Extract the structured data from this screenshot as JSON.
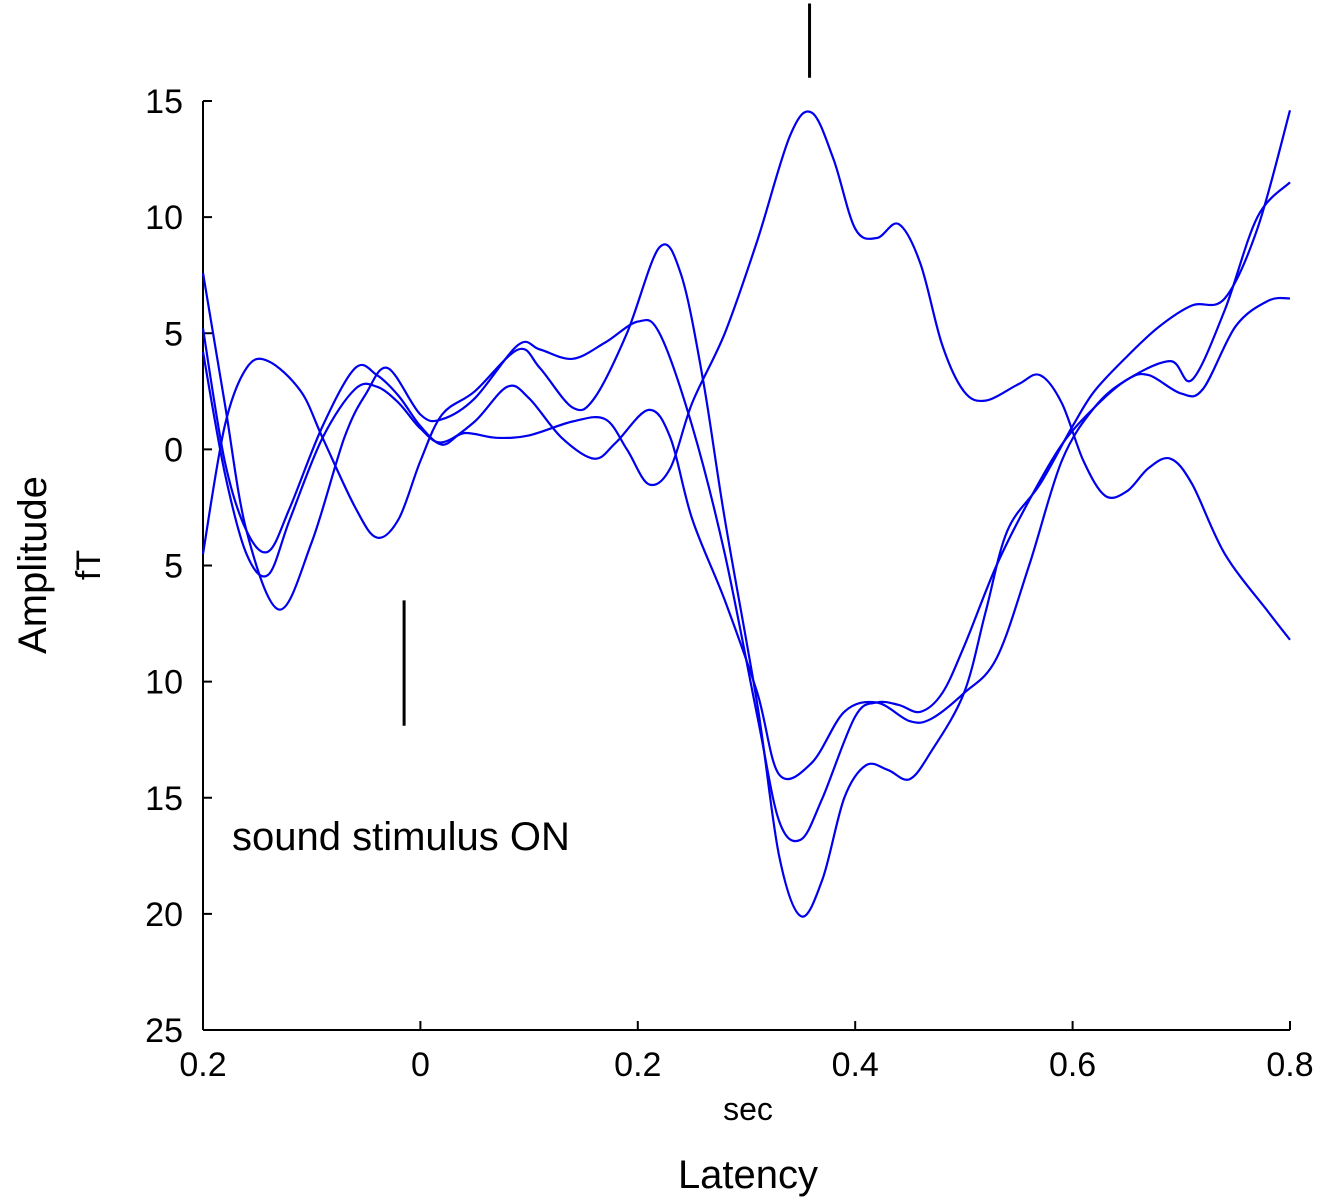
{
  "chart_data": {
    "type": "line",
    "xlabel": "Latency",
    "xunit": "sec",
    "ylabel": "Amplitude",
    "yunit": "fT",
    "xlim": [
      -0.2,
      0.8
    ],
    "ylim": [
      -25,
      15
    ],
    "xticks": [
      -0.2,
      0,
      0.2,
      0.4,
      0.6,
      0.8
    ],
    "xtick_labels": [
      "0.2",
      "0",
      "0.2",
      "0.4",
      "0.6",
      "0.8"
    ],
    "yticks": [
      15,
      10,
      5,
      0,
      -5,
      -10,
      -15,
      -20,
      -25
    ],
    "ytick_labels": [
      "15",
      "10",
      "5",
      "0",
      "5",
      "10",
      "15",
      "20",
      "25"
    ],
    "grid": false,
    "line_color": "#0000ee",
    "annotation": "sound stimulus ON",
    "markers": [
      {
        "x": -0.015,
        "y1": -6.5,
        "y2": -11.9
      },
      {
        "x": 0.358,
        "y1": 16.0,
        "y2": 19.2
      }
    ],
    "series": [
      {
        "points": [
          [
            -0.2,
            7.6
          ],
          [
            -0.18,
            2.0
          ],
          [
            -0.16,
            -3.5
          ],
          [
            -0.13,
            -6.9
          ],
          [
            -0.1,
            -4.0
          ],
          [
            -0.07,
            0.5
          ],
          [
            -0.05,
            2.4
          ],
          [
            -0.03,
            3.5
          ],
          [
            0.0,
            1.5
          ],
          [
            0.02,
            1.3
          ],
          [
            0.05,
            2.2
          ],
          [
            0.09,
            4.5
          ],
          [
            0.11,
            4.3
          ],
          [
            0.14,
            3.9
          ],
          [
            0.17,
            4.6
          ],
          [
            0.2,
            5.5
          ],
          [
            0.22,
            5.0
          ],
          [
            0.25,
            1.0
          ],
          [
            0.28,
            -4.5
          ],
          [
            0.31,
            -11.5
          ],
          [
            0.33,
            -16.0
          ],
          [
            0.35,
            -16.8
          ],
          [
            0.37,
            -15.0
          ],
          [
            0.4,
            -11.5
          ],
          [
            0.42,
            -10.9
          ],
          [
            0.44,
            -11.0
          ],
          [
            0.46,
            -11.3
          ],
          [
            0.48,
            -10.5
          ],
          [
            0.5,
            -8.5
          ],
          [
            0.53,
            -5.0
          ],
          [
            0.56,
            -2.2
          ],
          [
            0.59,
            0.2
          ],
          [
            0.62,
            1.8
          ],
          [
            0.65,
            3.0
          ],
          [
            0.67,
            3.2
          ],
          [
            0.7,
            2.4
          ],
          [
            0.72,
            2.6
          ],
          [
            0.75,
            5.3
          ],
          [
            0.78,
            6.4
          ],
          [
            0.8,
            6.5
          ]
        ]
      },
      {
        "points": [
          [
            -0.2,
            4.2
          ],
          [
            -0.18,
            -1.0
          ],
          [
            -0.16,
            -4.5
          ],
          [
            -0.14,
            -5.4
          ],
          [
            -0.12,
            -3.0
          ],
          [
            -0.09,
            0.5
          ],
          [
            -0.06,
            2.6
          ],
          [
            -0.04,
            2.7
          ],
          [
            -0.02,
            2.0
          ],
          [
            0.0,
            0.9
          ],
          [
            0.02,
            0.3
          ],
          [
            0.05,
            1.2
          ],
          [
            0.08,
            2.7
          ],
          [
            0.1,
            2.2
          ],
          [
            0.13,
            0.5
          ],
          [
            0.16,
            -0.4
          ],
          [
            0.18,
            0.3
          ],
          [
            0.21,
            1.7
          ],
          [
            0.23,
            0.5
          ],
          [
            0.25,
            -3.0
          ],
          [
            0.28,
            -6.5
          ],
          [
            0.31,
            -10.5
          ],
          [
            0.33,
            -14.0
          ],
          [
            0.36,
            -13.5
          ],
          [
            0.39,
            -11.3
          ],
          [
            0.42,
            -10.9
          ],
          [
            0.45,
            -11.7
          ],
          [
            0.47,
            -11.6
          ],
          [
            0.5,
            -10.5
          ],
          [
            0.53,
            -9.0
          ],
          [
            0.56,
            -5.0
          ],
          [
            0.59,
            -0.5
          ],
          [
            0.62,
            1.8
          ],
          [
            0.65,
            3.0
          ],
          [
            0.69,
            3.8
          ],
          [
            0.71,
            3.0
          ],
          [
            0.74,
            6.0
          ],
          [
            0.77,
            10.0
          ],
          [
            0.8,
            11.5
          ]
        ]
      },
      {
        "points": [
          [
            -0.2,
            5.2
          ],
          [
            -0.18,
            -0.5
          ],
          [
            -0.16,
            -3.5
          ],
          [
            -0.14,
            -4.4
          ],
          [
            -0.12,
            -2.5
          ],
          [
            -0.09,
            1.0
          ],
          [
            -0.06,
            3.5
          ],
          [
            -0.04,
            3.2
          ],
          [
            -0.02,
            2.3
          ],
          [
            0.0,
            1.0
          ],
          [
            0.02,
            0.2
          ],
          [
            0.04,
            0.7
          ],
          [
            0.07,
            0.5
          ],
          [
            0.1,
            0.6
          ],
          [
            0.14,
            1.2
          ],
          [
            0.17,
            1.3
          ],
          [
            0.19,
            0.0
          ],
          [
            0.21,
            -1.5
          ],
          [
            0.23,
            -0.8
          ],
          [
            0.25,
            2.0
          ],
          [
            0.28,
            5.0
          ],
          [
            0.31,
            9.0
          ],
          [
            0.34,
            13.5
          ],
          [
            0.36,
            14.5
          ],
          [
            0.38,
            12.5
          ],
          [
            0.4,
            9.5
          ],
          [
            0.42,
            9.1
          ],
          [
            0.44,
            9.7
          ],
          [
            0.46,
            8.0
          ],
          [
            0.48,
            4.5
          ],
          [
            0.5,
            2.5
          ],
          [
            0.52,
            2.1
          ],
          [
            0.55,
            2.8
          ],
          [
            0.57,
            3.2
          ],
          [
            0.59,
            2.0
          ],
          [
            0.61,
            -0.5
          ],
          [
            0.63,
            -2.0
          ],
          [
            0.65,
            -1.8
          ],
          [
            0.67,
            -0.8
          ],
          [
            0.69,
            -0.4
          ],
          [
            0.71,
            -1.5
          ],
          [
            0.74,
            -4.5
          ],
          [
            0.78,
            -7.0
          ],
          [
            0.8,
            -8.2
          ]
        ]
      },
      {
        "points": [
          [
            -0.2,
            -4.5
          ],
          [
            -0.18,
            1.0
          ],
          [
            -0.16,
            3.5
          ],
          [
            -0.14,
            3.8
          ],
          [
            -0.11,
            2.5
          ],
          [
            -0.09,
            0.5
          ],
          [
            -0.06,
            -2.5
          ],
          [
            -0.04,
            -3.8
          ],
          [
            -0.02,
            -3.0
          ],
          [
            0.0,
            -0.5
          ],
          [
            0.02,
            1.5
          ],
          [
            0.05,
            2.5
          ],
          [
            0.09,
            4.3
          ],
          [
            0.11,
            3.5
          ],
          [
            0.14,
            1.8
          ],
          [
            0.16,
            2.2
          ],
          [
            0.19,
            5.0
          ],
          [
            0.22,
            8.7
          ],
          [
            0.24,
            7.5
          ],
          [
            0.26,
            3.0
          ],
          [
            0.28,
            -3.0
          ],
          [
            0.31,
            -11.0
          ],
          [
            0.33,
            -17.5
          ],
          [
            0.35,
            -20.1
          ],
          [
            0.37,
            -18.5
          ],
          [
            0.39,
            -15.0
          ],
          [
            0.41,
            -13.6
          ],
          [
            0.43,
            -13.8
          ],
          [
            0.45,
            -14.2
          ],
          [
            0.47,
            -13.0
          ],
          [
            0.5,
            -10.5
          ],
          [
            0.52,
            -7.0
          ],
          [
            0.54,
            -3.5
          ],
          [
            0.57,
            -1.5
          ],
          [
            0.6,
            1.0
          ],
          [
            0.62,
            2.5
          ],
          [
            0.65,
            4.0
          ],
          [
            0.68,
            5.3
          ],
          [
            0.71,
            6.2
          ],
          [
            0.74,
            6.5
          ],
          [
            0.77,
            9.5
          ],
          [
            0.8,
            14.6
          ]
        ]
      }
    ]
  }
}
